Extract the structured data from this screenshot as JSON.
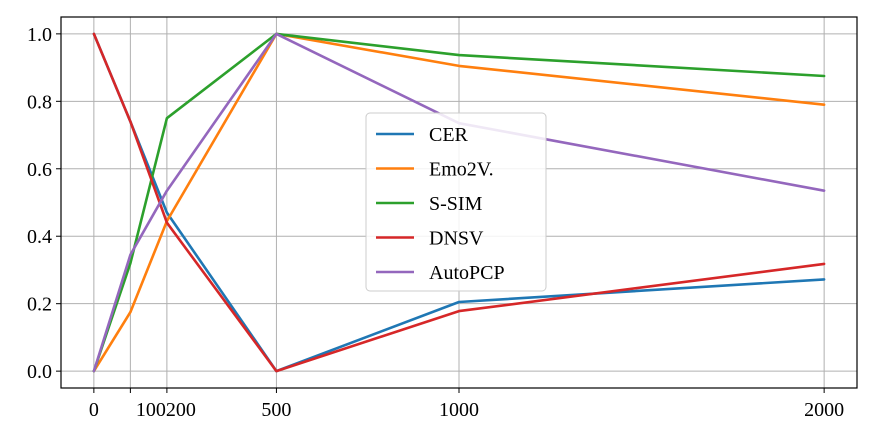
{
  "chart_data": {
    "type": "line",
    "title": "",
    "xlabel": "",
    "ylabel": "",
    "x": [
      0,
      100,
      200,
      500,
      1000,
      2000
    ],
    "xticks": [
      0,
      100,
      200,
      500,
      1000,
      2000
    ],
    "xtick_labels": [
      "0",
      "100",
      "200",
      "500",
      "1000",
      "2000"
    ],
    "xlim": [
      -90,
      2090
    ],
    "yticks": [
      0.0,
      0.2,
      0.4,
      0.6,
      0.8,
      1.0
    ],
    "ytick_labels": [
      "0.0",
      "0.2",
      "0.4",
      "0.6",
      "0.8",
      "1.0"
    ],
    "ylim": [
      -0.05,
      1.05
    ],
    "grid": true,
    "legend_position": "center",
    "series": [
      {
        "name": "CER",
        "color": "#1f77b4",
        "values": [
          1.0,
          0.74,
          0.47,
          0.0,
          0.205,
          0.272
        ]
      },
      {
        "name": "Emo2V.",
        "color": "#ff7f0e",
        "values": [
          0.0,
          0.175,
          0.445,
          1.0,
          0.905,
          0.79
        ]
      },
      {
        "name": "S-SIM",
        "color": "#2ca02c",
        "values": [
          0.0,
          0.32,
          0.75,
          1.0,
          0.937,
          0.875
        ]
      },
      {
        "name": "DNSV",
        "color": "#d62728",
        "values": [
          1.0,
          0.74,
          0.44,
          0.0,
          0.178,
          0.318
        ]
      },
      {
        "name": "AutoPCP",
        "color": "#9467bd",
        "values": [
          0.0,
          0.345,
          0.535,
          1.0,
          0.735,
          0.535
        ]
      }
    ]
  }
}
